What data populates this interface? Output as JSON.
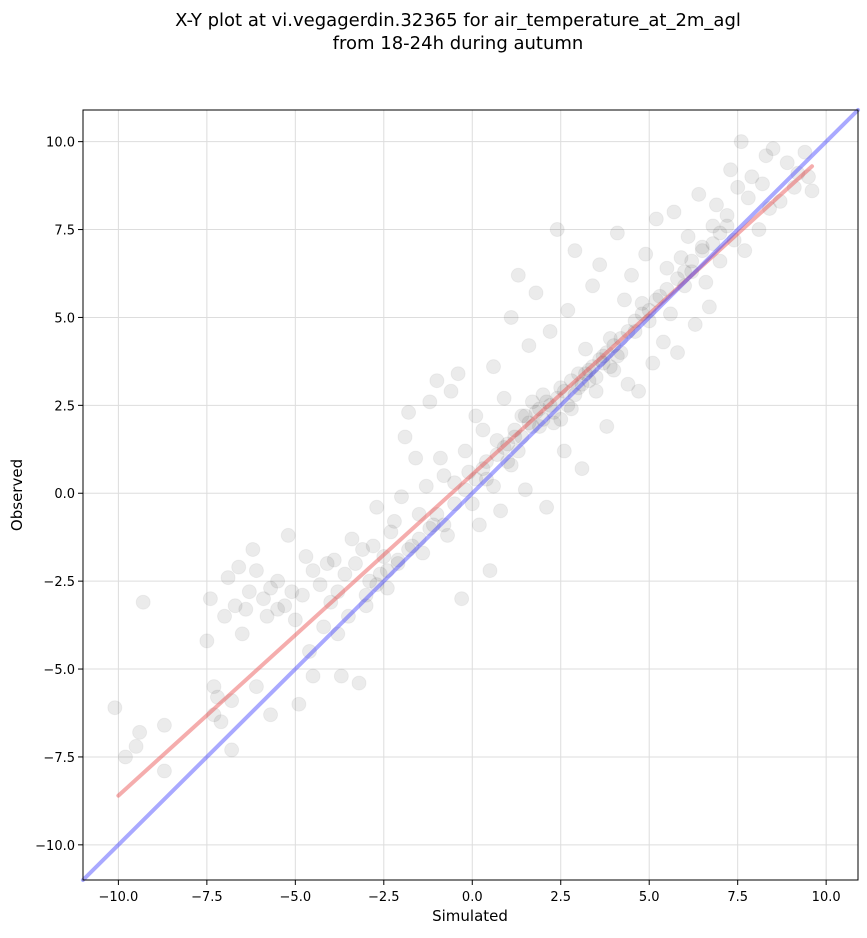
{
  "chart_data": {
    "type": "scatter",
    "title": "X-Y plot at vi.vegagerdin.32365 for air_temperature_at_2m_agl",
    "subtitle": "from 18-24h during autumn",
    "xlabel": "Simulated",
    "ylabel": "Observed",
    "xlim": [
      -11.0,
      10.9
    ],
    "ylim": [
      -11.0,
      10.9
    ],
    "x_ticks": [
      -10.0,
      -7.5,
      -5.0,
      -2.5,
      0.0,
      2.5,
      5.0,
      7.5,
      10.0
    ],
    "y_ticks": [
      -10.0,
      -7.5,
      -5.0,
      -2.5,
      0.0,
      2.5,
      5.0,
      7.5,
      10.0
    ],
    "x_tick_labels": [
      "−10.0",
      "−7.5",
      "−5.0",
      "−2.5",
      "0.0",
      "2.5",
      "5.0",
      "7.5",
      "10.0"
    ],
    "y_tick_labels": [
      "−10.0",
      "−7.5",
      "−5.0",
      "−2.5",
      "0.0",
      "2.5",
      "5.0",
      "7.5",
      "10.0"
    ],
    "grid": true,
    "point_color": "#000000",
    "point_opacity": 0.08,
    "series": [
      {
        "type": "scatter",
        "points": [
          [
            -10.1,
            -6.1
          ],
          [
            -9.8,
            -7.5
          ],
          [
            -9.5,
            -7.2
          ],
          [
            -9.4,
            -6.8
          ],
          [
            -9.3,
            -3.1
          ],
          [
            -8.7,
            -7.9
          ],
          [
            -8.7,
            -6.6
          ],
          [
            -7.5,
            -4.2
          ],
          [
            -7.4,
            -3.0
          ],
          [
            -7.3,
            -6.3
          ],
          [
            -7.3,
            -5.5
          ],
          [
            -7.2,
            -5.8
          ],
          [
            -7.1,
            -6.5
          ],
          [
            -7.0,
            -3.5
          ],
          [
            -6.9,
            -2.4
          ],
          [
            -6.8,
            -5.9
          ],
          [
            -6.8,
            -7.3
          ],
          [
            -6.7,
            -3.2
          ],
          [
            -6.6,
            -2.1
          ],
          [
            -6.5,
            -4.0
          ],
          [
            -6.4,
            -3.3
          ],
          [
            -6.3,
            -2.8
          ],
          [
            -6.2,
            -1.6
          ],
          [
            -6.1,
            -5.5
          ],
          [
            -6.1,
            -2.2
          ],
          [
            -5.9,
            -3.0
          ],
          [
            -5.8,
            -3.5
          ],
          [
            -5.7,
            -2.7
          ],
          [
            -5.7,
            -6.3
          ],
          [
            -5.5,
            -2.5
          ],
          [
            -5.5,
            -3.3
          ],
          [
            -5.3,
            -3.2
          ],
          [
            -5.2,
            -1.2
          ],
          [
            -5.1,
            -2.8
          ],
          [
            -5.0,
            -3.6
          ],
          [
            -4.9,
            -6.0
          ],
          [
            -4.8,
            -2.9
          ],
          [
            -4.7,
            -1.8
          ],
          [
            -4.6,
            -4.5
          ],
          [
            -4.5,
            -2.2
          ],
          [
            -4.5,
            -5.2
          ],
          [
            -4.3,
            -2.6
          ],
          [
            -4.2,
            -3.8
          ],
          [
            -4.1,
            -2.0
          ],
          [
            -4.0,
            -3.1
          ],
          [
            -3.9,
            -1.9
          ],
          [
            -3.8,
            -4.0
          ],
          [
            -3.8,
            -2.8
          ],
          [
            -3.7,
            -5.2
          ],
          [
            -3.6,
            -2.3
          ],
          [
            -3.5,
            -3.5
          ],
          [
            -3.4,
            -1.3
          ],
          [
            -3.3,
            -2.0
          ],
          [
            -3.2,
            -5.4
          ],
          [
            -3.1,
            -1.6
          ],
          [
            -3.0,
            -3.2
          ],
          [
            -2.9,
            -2.5
          ],
          [
            -2.8,
            -1.5
          ],
          [
            -2.7,
            -0.4
          ],
          [
            -2.6,
            -2.3
          ],
          [
            -2.5,
            -1.8
          ],
          [
            -2.4,
            -2.7
          ],
          [
            -2.3,
            -1.1
          ],
          [
            -2.2,
            -0.8
          ],
          [
            -2.1,
            -2.0
          ],
          [
            -2.0,
            -0.1
          ],
          [
            -1.9,
            1.6
          ],
          [
            -1.8,
            2.3
          ],
          [
            -1.7,
            -1.5
          ],
          [
            -1.6,
            1.0
          ],
          [
            -1.5,
            -0.6
          ],
          [
            -1.4,
            -1.7
          ],
          [
            -1.3,
            0.2
          ],
          [
            -1.2,
            2.6
          ],
          [
            -1.1,
            -0.9
          ],
          [
            -1.0,
            3.2
          ],
          [
            -0.9,
            1.0
          ],
          [
            -0.8,
            0.5
          ],
          [
            -0.7,
            -1.2
          ],
          [
            -0.6,
            2.9
          ],
          [
            -0.5,
            0.3
          ],
          [
            -0.4,
            3.4
          ],
          [
            -0.3,
            -3.0
          ],
          [
            -0.2,
            1.2
          ],
          [
            -0.1,
            0.6
          ],
          [
            0.0,
            -0.3
          ],
          [
            0.1,
            2.2
          ],
          [
            0.2,
            -0.9
          ],
          [
            0.3,
            1.8
          ],
          [
            0.4,
            0.4
          ],
          [
            0.5,
            -2.2
          ],
          [
            0.6,
            3.6
          ],
          [
            0.7,
            1.5
          ],
          [
            0.8,
            -0.5
          ],
          [
            0.9,
            2.7
          ],
          [
            1.0,
            0.9
          ],
          [
            1.1,
            5.0
          ],
          [
            1.2,
            1.6
          ],
          [
            1.3,
            6.2
          ],
          [
            1.4,
            2.2
          ],
          [
            1.5,
            0.1
          ],
          [
            1.6,
            4.2
          ],
          [
            1.7,
            2.6
          ],
          [
            1.8,
            5.7
          ],
          [
            1.9,
            1.9
          ],
          [
            2.0,
            2.8
          ],
          [
            2.1,
            -0.4
          ],
          [
            2.2,
            4.6
          ],
          [
            2.3,
            2.0
          ],
          [
            2.4,
            7.5
          ],
          [
            2.5,
            3.0
          ],
          [
            2.6,
            1.2
          ],
          [
            2.7,
            5.2
          ],
          [
            2.8,
            2.4
          ],
          [
            2.9,
            6.9
          ],
          [
            3.0,
            3.4
          ],
          [
            3.1,
            0.7
          ],
          [
            3.2,
            4.1
          ],
          [
            3.3,
            3.2
          ],
          [
            3.4,
            5.9
          ],
          [
            3.5,
            2.9
          ],
          [
            3.6,
            6.5
          ],
          [
            3.7,
            3.7
          ],
          [
            3.8,
            1.9
          ],
          [
            3.9,
            4.4
          ],
          [
            4.0,
            3.5
          ],
          [
            4.1,
            7.4
          ],
          [
            4.2,
            4.0
          ],
          [
            4.3,
            5.5
          ],
          [
            4.4,
            3.1
          ],
          [
            4.5,
            6.2
          ],
          [
            4.6,
            4.6
          ],
          [
            4.7,
            2.9
          ],
          [
            4.8,
            5.4
          ],
          [
            4.9,
            6.8
          ],
          [
            5.0,
            4.9
          ],
          [
            5.1,
            3.7
          ],
          [
            5.2,
            7.8
          ],
          [
            5.3,
            5.6
          ],
          [
            5.4,
            4.3
          ],
          [
            5.5,
            6.4
          ],
          [
            5.6,
            5.1
          ],
          [
            5.7,
            8.0
          ],
          [
            5.8,
            4.0
          ],
          [
            5.9,
            6.7
          ],
          [
            6.0,
            5.9
          ],
          [
            6.1,
            7.3
          ],
          [
            6.2,
            6.3
          ],
          [
            6.3,
            4.8
          ],
          [
            6.4,
            8.5
          ],
          [
            6.5,
            7.0
          ],
          [
            6.6,
            6.0
          ],
          [
            6.7,
            5.3
          ],
          [
            6.8,
            7.6
          ],
          [
            6.9,
            8.2
          ],
          [
            7.0,
            6.6
          ],
          [
            7.2,
            7.9
          ],
          [
            7.3,
            9.2
          ],
          [
            7.4,
            7.2
          ],
          [
            7.5,
            8.7
          ],
          [
            7.6,
            10.0
          ],
          [
            7.7,
            6.9
          ],
          [
            7.8,
            8.4
          ],
          [
            7.9,
            9.0
          ],
          [
            8.1,
            7.5
          ],
          [
            8.2,
            8.8
          ],
          [
            8.3,
            9.6
          ],
          [
            8.4,
            8.1
          ],
          [
            8.5,
            9.8
          ],
          [
            8.7,
            8.3
          ],
          [
            8.9,
            9.4
          ],
          [
            9.1,
            8.7
          ],
          [
            9.2,
            9.1
          ],
          [
            9.4,
            9.7
          ],
          [
            9.5,
            9.0
          ],
          [
            9.6,
            8.6
          ],
          [
            -0.8,
            -0.9
          ],
          [
            -0.5,
            -0.3
          ],
          [
            -0.2,
            0.1
          ],
          [
            0.1,
            0.4
          ],
          [
            0.4,
            0.9
          ],
          [
            0.7,
            1.1
          ],
          [
            1.0,
            1.4
          ],
          [
            1.2,
            1.8
          ],
          [
            1.4,
            1.6
          ],
          [
            1.6,
            2.0
          ],
          [
            1.8,
            2.3
          ],
          [
            2.0,
            2.1
          ],
          [
            2.2,
            2.5
          ],
          [
            2.4,
            2.7
          ],
          [
            2.6,
            2.9
          ],
          [
            2.8,
            3.2
          ],
          [
            3.0,
            3.0
          ],
          [
            3.2,
            3.4
          ],
          [
            3.4,
            3.6
          ],
          [
            3.6,
            3.8
          ],
          [
            3.8,
            4.0
          ],
          [
            4.0,
            4.2
          ],
          [
            4.2,
            4.4
          ],
          [
            4.4,
            4.6
          ],
          [
            1.5,
            2.2
          ],
          [
            1.7,
            1.9
          ],
          [
            1.9,
            2.4
          ],
          [
            2.1,
            2.6
          ],
          [
            2.3,
            2.3
          ],
          [
            2.5,
            2.1
          ],
          [
            2.7,
            2.5
          ],
          [
            2.9,
            2.8
          ],
          [
            3.1,
            3.1
          ],
          [
            3.3,
            3.5
          ],
          [
            3.5,
            3.3
          ],
          [
            3.7,
            3.9
          ],
          [
            3.9,
            3.6
          ],
          [
            4.1,
            3.9
          ],
          [
            -1.0,
            -0.6
          ],
          [
            -1.2,
            -1.0
          ],
          [
            -1.5,
            -1.3
          ],
          [
            -1.8,
            -1.6
          ],
          [
            -2.1,
            -1.9
          ],
          [
            -2.4,
            -2.2
          ],
          [
            -2.7,
            -2.6
          ],
          [
            -3.0,
            -2.9
          ],
          [
            0.3,
            0.7
          ],
          [
            0.6,
            0.2
          ],
          [
            0.9,
            1.3
          ],
          [
            1.1,
            0.8
          ],
          [
            1.3,
            1.2
          ],
          [
            5.0,
            5.2
          ],
          [
            5.5,
            5.8
          ],
          [
            6.0,
            6.3
          ],
          [
            6.5,
            6.9
          ],
          [
            7.0,
            7.4
          ],
          [
            4.6,
            4.9
          ],
          [
            4.8,
            5.1
          ],
          [
            5.2,
            5.5
          ],
          [
            5.8,
            6.1
          ],
          [
            6.2,
            6.6
          ],
          [
            6.8,
            7.1
          ],
          [
            7.2,
            7.6
          ]
        ]
      },
      {
        "type": "line",
        "color": "#e84a4a",
        "points": [
          [
            -10.0,
            -8.6
          ],
          [
            9.6,
            9.3
          ]
        ]
      },
      {
        "type": "line",
        "color": "#4040ff",
        "points": [
          [
            -11.0,
            -11.0
          ],
          [
            10.9,
            10.9
          ]
        ]
      }
    ]
  }
}
